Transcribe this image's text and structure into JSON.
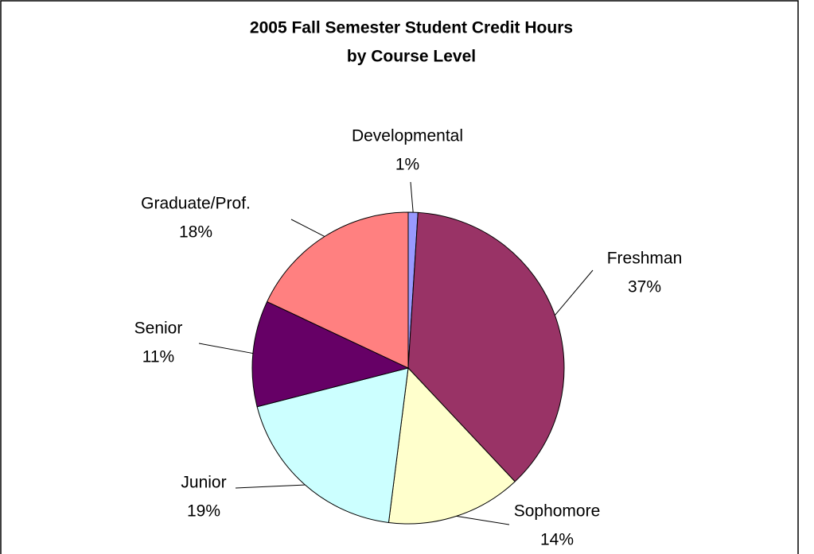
{
  "chart_data": {
    "type": "pie",
    "title": [
      "2005 Fall Semester Student Credit Hours",
      "by Course Level"
    ],
    "categories": [
      "Developmental",
      "Freshman",
      "Sophomore",
      "Junior",
      "Senior",
      "Graduate/Prof."
    ],
    "values": [
      1,
      37,
      14,
      19,
      11,
      18
    ],
    "value_labels": [
      "1%",
      "37%",
      "14%",
      "19%",
      "11%",
      "18%"
    ],
    "colors": [
      "#9999ff",
      "#993366",
      "#ffffcc",
      "#ccffff",
      "#660066",
      "#ff8080"
    ]
  }
}
